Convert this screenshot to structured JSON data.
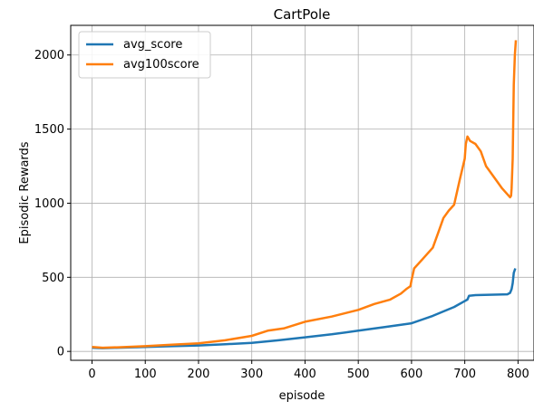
{
  "chart_data": {
    "type": "line",
    "title": "CartPole",
    "xlabel": "episode",
    "ylabel": "Episodic Rewards",
    "xlim": [
      -40,
      830
    ],
    "ylim": [
      -60,
      2200
    ],
    "xticks": [
      0,
      100,
      200,
      300,
      400,
      500,
      600,
      700,
      800
    ],
    "yticks": [
      0,
      500,
      1000,
      1500,
      2000
    ],
    "grid": true,
    "legend": "top-left",
    "series": [
      {
        "name": "avg_score",
        "color": "#1f77b4",
        "points": [
          [
            0,
            25
          ],
          [
            20,
            22
          ],
          [
            50,
            25
          ],
          [
            100,
            30
          ],
          [
            150,
            35
          ],
          [
            200,
            40
          ],
          [
            250,
            48
          ],
          [
            300,
            58
          ],
          [
            350,
            75
          ],
          [
            400,
            95
          ],
          [
            450,
            115
          ],
          [
            500,
            140
          ],
          [
            550,
            165
          ],
          [
            600,
            190
          ],
          [
            620,
            215
          ],
          [
            640,
            240
          ],
          [
            660,
            270
          ],
          [
            680,
            300
          ],
          [
            695,
            330
          ],
          [
            705,
            350
          ],
          [
            708,
            375
          ],
          [
            720,
            380
          ],
          [
            780,
            385
          ],
          [
            785,
            395
          ],
          [
            788,
            420
          ],
          [
            790,
            460
          ],
          [
            792,
            530
          ],
          [
            795,
            560
          ]
        ]
      },
      {
        "name": "avg100score",
        "color": "#ff7f0e",
        "points": [
          [
            0,
            30
          ],
          [
            20,
            25
          ],
          [
            50,
            28
          ],
          [
            100,
            35
          ],
          [
            150,
            45
          ],
          [
            200,
            55
          ],
          [
            250,
            75
          ],
          [
            300,
            105
          ],
          [
            330,
            140
          ],
          [
            360,
            155
          ],
          [
            400,
            200
          ],
          [
            450,
            235
          ],
          [
            500,
            280
          ],
          [
            530,
            320
          ],
          [
            560,
            350
          ],
          [
            580,
            390
          ],
          [
            590,
            420
          ],
          [
            598,
            440
          ],
          [
            600,
            480
          ],
          [
            605,
            560
          ],
          [
            620,
            620
          ],
          [
            640,
            700
          ],
          [
            650,
            800
          ],
          [
            660,
            900
          ],
          [
            670,
            950
          ],
          [
            680,
            990
          ],
          [
            690,
            1150
          ],
          [
            700,
            1300
          ],
          [
            702,
            1400
          ],
          [
            705,
            1450
          ],
          [
            710,
            1420
          ],
          [
            720,
            1400
          ],
          [
            730,
            1350
          ],
          [
            740,
            1250
          ],
          [
            760,
            1150
          ],
          [
            770,
            1100
          ],
          [
            780,
            1060
          ],
          [
            785,
            1040
          ],
          [
            787,
            1050
          ],
          [
            788,
            1100
          ],
          [
            790,
            1300
          ],
          [
            792,
            1800
          ],
          [
            794,
            2000
          ],
          [
            796,
            2100
          ]
        ]
      }
    ]
  }
}
